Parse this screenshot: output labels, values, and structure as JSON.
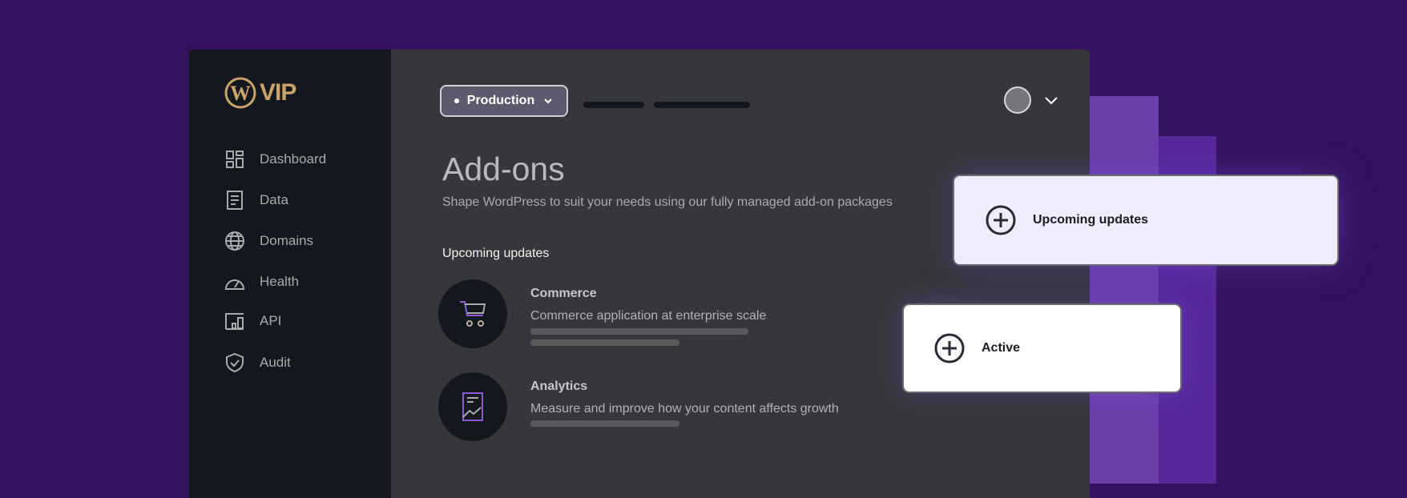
{
  "colors": {
    "background": "#34135e",
    "sidebar": "#13171e",
    "main": "#36373a",
    "logo": "#c9a36a",
    "accent_purple": "#6a3fa8"
  },
  "logo": {
    "text": "VIP"
  },
  "sidebar": {
    "items": [
      {
        "label": "Dashboard",
        "icon": "dashboard-icon"
      },
      {
        "label": "Data",
        "icon": "document-icon"
      },
      {
        "label": "Domains",
        "icon": "globe-icon"
      },
      {
        "label": "Health",
        "icon": "gauge-icon"
      },
      {
        "label": "API",
        "icon": "api-icon"
      },
      {
        "label": "Audit",
        "icon": "shield-check-icon"
      }
    ]
  },
  "header": {
    "environment": "Production"
  },
  "main": {
    "title": "Add-ons",
    "subtitle": "Shape WordPress to suit your needs using our fully managed add-on packages",
    "section": "Upcoming updates",
    "addons": [
      {
        "title": "Commerce",
        "description": "Commerce application at enterprise scale",
        "icon": "cart-icon"
      },
      {
        "title": "Analytics",
        "description": "Measure and improve how your content affects growth",
        "icon": "chart-document-icon"
      }
    ]
  },
  "cards": [
    {
      "label": "Upcoming updates"
    },
    {
      "label": "Active"
    }
  ]
}
